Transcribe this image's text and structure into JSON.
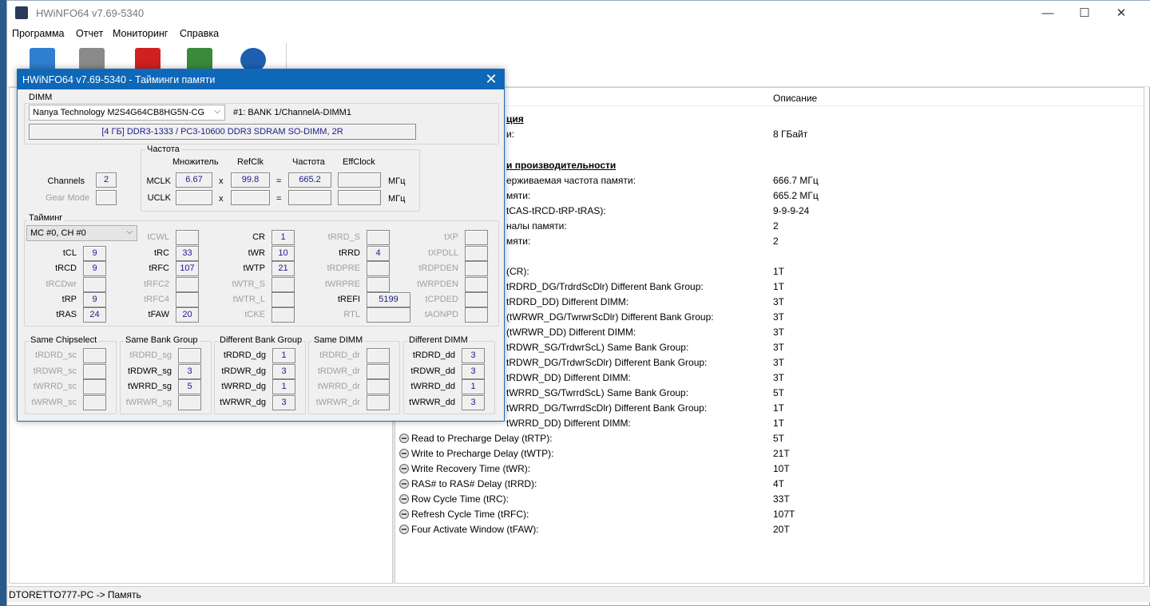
{
  "app": {
    "title": "HWiNFO64 v7.69-5340",
    "minimize": "—",
    "maximize": "☐",
    "close": "✕"
  },
  "menu": [
    "Программа",
    "Отчет",
    "Мониторинг",
    "Справка"
  ],
  "toolbar": [
    {
      "icon": "computer-icon",
      "color": "#2f7fd0"
    },
    {
      "icon": "floppy-save-icon",
      "color": "#8a8a8a"
    },
    {
      "icon": "thermometer-sensors-icon",
      "color": "#d02020"
    },
    {
      "icon": "memory-module-icon",
      "color": "#3a8a3a"
    },
    {
      "icon": "info-icon",
      "color": "#1e5fb0"
    }
  ],
  "right_pane": {
    "header_desc": "Описание",
    "rows": [
      {
        "y": 141,
        "label": "ция",
        "value": "",
        "bold": true,
        "icon": false
      },
      {
        "y": 160,
        "label": "и:",
        "value": "8 ГБайт",
        "icon": false
      },
      {
        "y": 199,
        "label": "и производительности",
        "value": "",
        "bold": true,
        "icon": false
      },
      {
        "y": 218,
        "label": "ерживаемая частота памяти:",
        "value": "666.7 МГц",
        "icon": false
      },
      {
        "y": 237,
        "label": "мяти:",
        "value": "665.2 МГц",
        "icon": false
      },
      {
        "y": 256,
        "label": "tCAS-tRCD-tRP-tRAS):",
        "value": "9-9-9-24",
        "icon": false
      },
      {
        "y": 275,
        "label": "налы памяти:",
        "value": "2",
        "icon": false
      },
      {
        "y": 294,
        "label": "мяти:",
        "value": "2",
        "icon": false
      },
      {
        "y": 332,
        "label": "(CR):",
        "value": "1T",
        "icon": false
      },
      {
        "y": 351,
        "label": "tRDRD_DG/TrdrdScDlr) Different Bank Group:",
        "value": "1T",
        "icon": false
      },
      {
        "y": 370,
        "label": "tRDRD_DD) Different DIMM:",
        "value": "3T",
        "icon": false
      },
      {
        "y": 389,
        "label": "(tWRWR_DG/TwrwrScDlr) Different Bank Group:",
        "value": "3T",
        "icon": false
      },
      {
        "y": 408,
        "label": "(tWRWR_DD) Different DIMM:",
        "value": "3T",
        "icon": false
      },
      {
        "y": 427,
        "label": "tRDWR_SG/TrdwrScL) Same Bank Group:",
        "value": "3T",
        "icon": false
      },
      {
        "y": 446,
        "label": "tRDWR_DG/TrdwrScDlr) Different Bank Group:",
        "value": "3T",
        "icon": false
      },
      {
        "y": 465,
        "label": "tRDWR_DD) Different DIMM:",
        "value": "3T",
        "icon": false
      },
      {
        "y": 484,
        "label": "tWRRD_SG/TwrrdScL) Same Bank Group:",
        "value": "5T",
        "icon": false
      },
      {
        "y": 503,
        "label": "tWRRD_DG/TwrrdScDlr) Different Bank Group:",
        "value": "1T",
        "icon": false
      },
      {
        "y": 522,
        "label": "tWRRD_DD) Different DIMM:",
        "value": "1T",
        "icon": false
      },
      {
        "y": 541,
        "label": "Read to Precharge Delay (tRTP):",
        "value": "5T",
        "icon": true
      },
      {
        "y": 560,
        "label": "Write to Precharge Delay (tWTP):",
        "value": "21T",
        "icon": true
      },
      {
        "y": 579,
        "label": "Write Recovery Time (tWR):",
        "value": "10T",
        "icon": true
      },
      {
        "y": 598,
        "label": "RAS# to RAS# Delay (tRRD):",
        "value": "4T",
        "icon": true
      },
      {
        "y": 617,
        "label": "Row Cycle Time (tRC):",
        "value": "33T",
        "icon": true
      },
      {
        "y": 636,
        "label": "Refresh Cycle Time (tRFC):",
        "value": "107T",
        "icon": true
      },
      {
        "y": 655,
        "label": "Four Activate Window (tFAW):",
        "value": "20T",
        "icon": true
      }
    ]
  },
  "status": "DTORETTO777-PC -> Память",
  "dialog": {
    "title": "HWiNFO64 v7.69-5340 - Тайминги памяти",
    "close": "✕",
    "dimm_group": "DIMM",
    "dimm_select": "Nanya Technology M2S4G64CB8HG5N-CG",
    "dimm_slot": "#1: BANK 1/ChannelA-DIMM1",
    "dimm_desc": "[4 ГБ] DDR3-1333 / PC3-10600 DDR3 SDRAM SO-DIMM, 2R",
    "freq_group": "Частота",
    "col_mult": "Множитель",
    "col_refclk": "RefClk",
    "col_freq": "Частота",
    "col_eff": "EffClock",
    "mclk": "MCLK",
    "mclk_mult": "6.67",
    "mclk_ref": "99.8",
    "mclk_freq": "665.2",
    "mclk_eff": "",
    "uclk": "UCLK",
    "x": "x",
    "eq": "=",
    "mhz": "МГц",
    "channels_label": "Channels",
    "channels": "2",
    "gear_label": "Gear Mode",
    "gear": "",
    "timing_group": "Тайминг",
    "mc_select": "MC #0, CH #0",
    "timing_cols": [
      [
        {
          "l": "tCL",
          "v": "9",
          "r": 1
        },
        {
          "l": "tRCD",
          "v": "9",
          "r": 2
        },
        {
          "l": "tRCDwr",
          "v": "",
          "r": 3
        },
        {
          "l": "tRP",
          "v": "9",
          "r": 4
        },
        {
          "l": "tRAS",
          "v": "24",
          "r": 5
        }
      ],
      [
        {
          "l": "tCWL",
          "v": "",
          "r": 0
        },
        {
          "l": "tRC",
          "v": "33",
          "r": 1
        },
        {
          "l": "tRFC",
          "v": "107",
          "r": 2
        },
        {
          "l": "tRFC2",
          "v": "",
          "r": 3
        },
        {
          "l": "tRFC4",
          "v": "",
          "r": 4
        },
        {
          "l": "tFAW",
          "v": "20",
          "r": 5
        }
      ],
      [
        {
          "l": "CR",
          "v": "1",
          "r": 0
        },
        {
          "l": "tWR",
          "v": "10",
          "r": 1
        },
        {
          "l": "tWTP",
          "v": "21",
          "r": 2
        },
        {
          "l": "tWTR_S",
          "v": "",
          "r": 3
        },
        {
          "l": "tWTR_L",
          "v": "",
          "r": 4
        },
        {
          "l": "tCKE",
          "v": "",
          "r": 5
        }
      ],
      [
        {
          "l": "tRRD_S",
          "v": "",
          "r": 0
        },
        {
          "l": "tRRD",
          "v": "4",
          "r": 1
        },
        {
          "l": "tRDPRE",
          "v": "",
          "r": 2
        },
        {
          "l": "tWRPRE",
          "v": "",
          "r": 3
        },
        {
          "l": "tREFI",
          "v": "5199",
          "r": 4,
          "wide": true
        },
        {
          "l": "RTL",
          "v": "",
          "r": 5,
          "wide": true
        }
      ],
      [
        {
          "l": "tXP",
          "v": "",
          "r": 0
        },
        {
          "l": "tXPDLL",
          "v": "",
          "r": 1
        },
        {
          "l": "tRDPDEN",
          "v": "",
          "r": 2
        },
        {
          "l": "tWRPDEN",
          "v": "",
          "r": 3
        },
        {
          "l": "tCPDED",
          "v": "",
          "r": 4
        },
        {
          "l": "tAONPD",
          "v": "",
          "r": 5
        }
      ]
    ],
    "groups": [
      {
        "title": "Same Chipselect",
        "items": [
          {
            "l": "tRDRD_sc",
            "v": ""
          },
          {
            "l": "tRDWR_sc",
            "v": ""
          },
          {
            "l": "tWRRD_sc",
            "v": ""
          },
          {
            "l": "tWRWR_sc",
            "v": ""
          }
        ]
      },
      {
        "title": "Same Bank Group",
        "items": [
          {
            "l": "tRDRD_sg",
            "v": ""
          },
          {
            "l": "tRDWR_sg",
            "v": "3"
          },
          {
            "l": "tWRRD_sg",
            "v": "5"
          },
          {
            "l": "tWRWR_sg",
            "v": ""
          }
        ]
      },
      {
        "title": "Different Bank Group",
        "items": [
          {
            "l": "tRDRD_dg",
            "v": "1"
          },
          {
            "l": "tRDWR_dg",
            "v": "3"
          },
          {
            "l": "tWRRD_dg",
            "v": "1"
          },
          {
            "l": "tWRWR_dg",
            "v": "3"
          }
        ]
      },
      {
        "title": "Same DIMM",
        "items": [
          {
            "l": "tRDRD_dr",
            "v": ""
          },
          {
            "l": "tRDWR_dr",
            "v": ""
          },
          {
            "l": "tWRRD_dr",
            "v": ""
          },
          {
            "l": "tWRWR_dr",
            "v": ""
          }
        ]
      },
      {
        "title": "Different DIMM",
        "items": [
          {
            "l": "tRDRD_dd",
            "v": "3"
          },
          {
            "l": "tRDWR_dd",
            "v": "3"
          },
          {
            "l": "tWRRD_dd",
            "v": "1"
          },
          {
            "l": "tWRWR_dd",
            "v": "3"
          }
        ]
      }
    ]
  }
}
